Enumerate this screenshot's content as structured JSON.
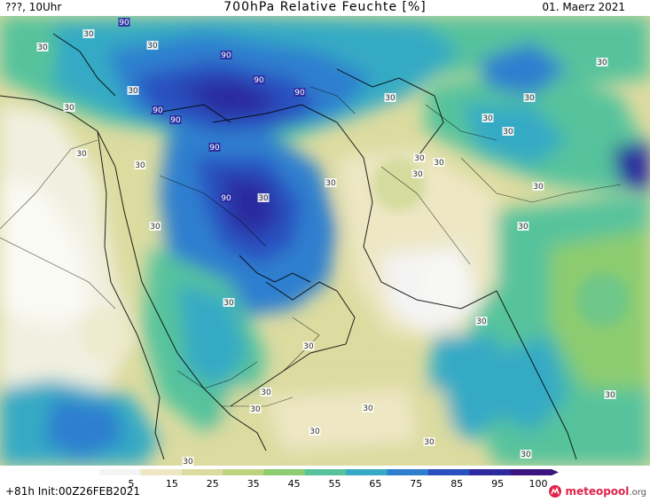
{
  "header": {
    "run_label": "???, 10Uhr",
    "title": "700hPa Relative Feuchte [%]",
    "date": "01. Maerz 2021"
  },
  "footer": {
    "forecast_info": "+81h Init:00Z26FEB2021",
    "logo_text": "meteopool",
    "logo_suffix": ".org"
  },
  "colorbar": {
    "ticks": [
      "5",
      "15",
      "25",
      "35",
      "45",
      "55",
      "65",
      "75",
      "85",
      "95",
      "100"
    ],
    "colors": [
      "#f4f4f4",
      "#ede7c4",
      "#dcdba0",
      "#bfd27e",
      "#8dcc70",
      "#56c39c",
      "#36aac4",
      "#2f7fcf",
      "#2a4fbf",
      "#2c2a9e",
      "#3a1580"
    ]
  },
  "map_labels": {
    "values": [
      "90",
      "90",
      "90",
      "90",
      "90",
      "90",
      "90",
      "90",
      "30",
      "30",
      "30",
      "30",
      "30",
      "30",
      "30",
      "30",
      "30",
      "30",
      "30",
      "30",
      "30",
      "30",
      "30",
      "30",
      "30",
      "30",
      "30",
      "30",
      "30",
      "30",
      "30",
      "30",
      "30",
      "30",
      "30",
      "30",
      "30",
      "30",
      "30"
    ]
  }
}
